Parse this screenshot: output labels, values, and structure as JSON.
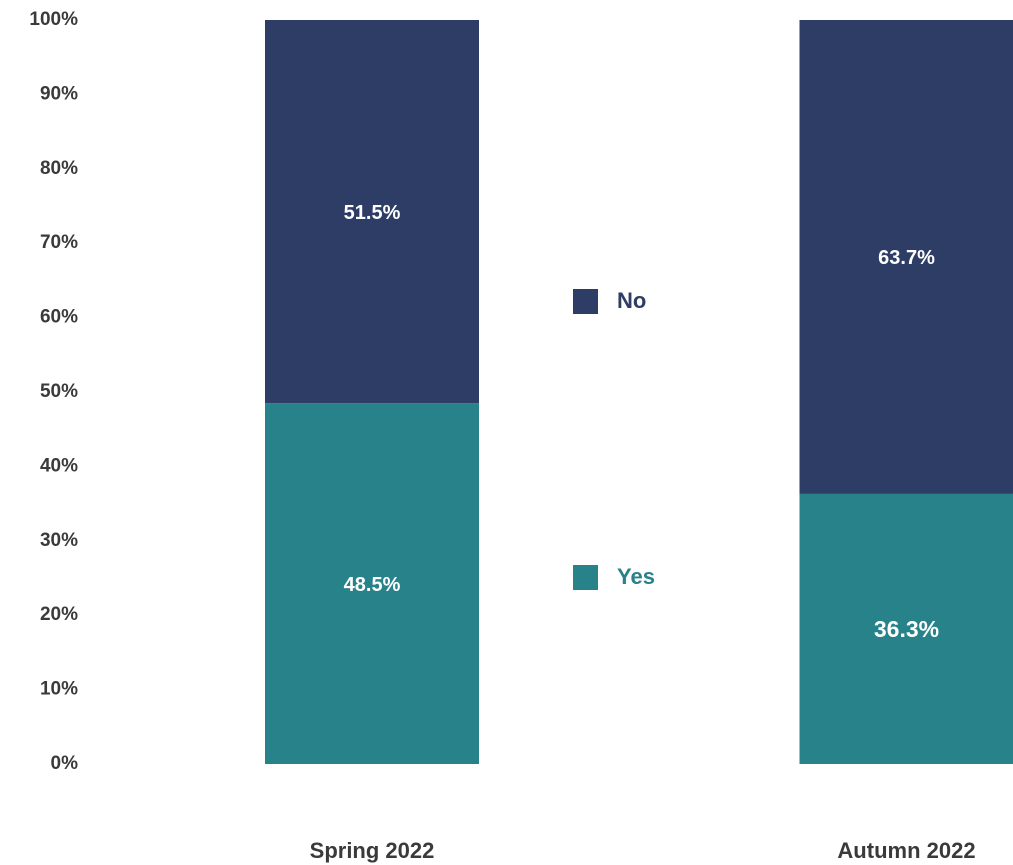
{
  "chart_data": {
    "type": "stacked_bar",
    "categories": [
      "Spring 2022",
      "Autumn 2022"
    ],
    "series": [
      {
        "name": "Yes",
        "color": "#27828a",
        "values": [
          48.5,
          36.3
        ],
        "value_labels": [
          "48.5%",
          "36.3%"
        ]
      },
      {
        "name": "No",
        "color": "#2e3d66",
        "values": [
          51.5,
          63.7
        ],
        "value_labels": [
          "51.5%",
          "63.7%"
        ]
      }
    ],
    "ylim": [
      0,
      100
    ],
    "yticks": [
      {
        "value": 0,
        "label": "0%"
      },
      {
        "value": 10,
        "label": "10%"
      },
      {
        "value": 20,
        "label": "20%"
      },
      {
        "value": 30,
        "label": "30%"
      },
      {
        "value": 40,
        "label": "40%"
      },
      {
        "value": 50,
        "label": "50%"
      },
      {
        "value": 60,
        "label": "60%"
      },
      {
        "value": 70,
        "label": "70%"
      },
      {
        "value": 80,
        "label": "80%"
      },
      {
        "value": 90,
        "label": "90%"
      },
      {
        "value": 100,
        "label": "100%"
      }
    ],
    "grid": false
  }
}
